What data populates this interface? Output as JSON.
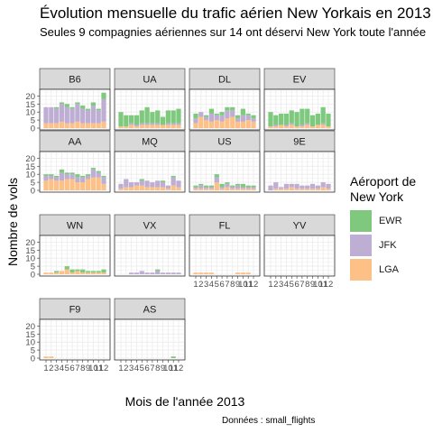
{
  "chart_data": {
    "type": "bar",
    "title": "Évolution mensuelle du trafic aérien New Yorkais en 2013",
    "subtitle": "Seules 9 compagnies aériennes sur 14 ont déservi New York toute l'année",
    "xlabel": "Mois de l'année 2013",
    "ylabel": "Nombre de vols",
    "caption": "Données : small_flights",
    "ylim": [
      0,
      23
    ],
    "y_ticks": [
      0,
      5,
      10,
      15,
      20
    ],
    "x_tick_labels": [
      "1",
      "2",
      "3",
      "4",
      "5",
      "6",
      "7",
      "8",
      "9",
      "10",
      "11",
      "12"
    ],
    "months": [
      1,
      2,
      3,
      4,
      5,
      6,
      7,
      8,
      9,
      10,
      11,
      12
    ],
    "stacked": true,
    "legend": {
      "title": "Aéroport de New York",
      "position": "right",
      "items": [
        {
          "name": "EWR",
          "color": "#7fc97f"
        },
        {
          "name": "JFK",
          "color": "#beaed4"
        },
        {
          "name": "LGA",
          "color": "#fdc086"
        }
      ]
    },
    "facets": [
      {
        "carrier": "B6",
        "EWR": [
          0,
          0,
          1,
          1,
          2,
          1,
          1,
          2,
          1,
          2,
          1,
          4
        ],
        "JFK": [
          10,
          10,
          9,
          11,
          10,
          9,
          11,
          9,
          8,
          11,
          8,
          14
        ],
        "LGA": [
          3,
          3,
          3,
          4,
          3,
          3,
          4,
          3,
          3,
          3,
          3,
          4
        ]
      },
      {
        "carrier": "UA",
        "EWR": [
          9,
          7,
          5,
          6,
          8,
          10,
          7,
          8,
          5,
          8,
          8,
          9
        ],
        "JFK": [
          0,
          0,
          1,
          1,
          1,
          1,
          1,
          1,
          0,
          1,
          1,
          1
        ],
        "LGA": [
          1,
          1,
          2,
          1,
          2,
          2,
          2,
          2,
          2,
          2,
          2,
          2
        ]
      },
      {
        "carrier": "DL",
        "EWR": [
          3,
          0,
          1,
          3,
          1,
          2,
          2,
          2,
          2,
          4,
          1,
          2
        ],
        "JFK": [
          3,
          3,
          2,
          5,
          3,
          4,
          5,
          4,
          2,
          4,
          3,
          2
        ],
        "LGA": [
          3,
          7,
          5,
          4,
          5,
          4,
          6,
          7,
          4,
          4,
          5,
          4
        ]
      },
      {
        "carrier": "EV",
        "EWR": [
          9,
          6,
          7,
          7,
          8,
          9,
          10,
          9,
          7,
          7,
          10,
          8
        ],
        "JFK": [
          0,
          1,
          0,
          1,
          1,
          0,
          1,
          1,
          0,
          0,
          1,
          0
        ],
        "LGA": [
          1,
          1,
          2,
          1,
          2,
          1,
          1,
          2,
          1,
          2,
          2,
          1
        ]
      },
      {
        "carrier": "AA",
        "EWR": [
          1,
          1,
          1,
          2,
          1,
          1,
          2,
          1,
          1,
          1,
          1,
          1
        ],
        "JFK": [
          3,
          2,
          2,
          5,
          3,
          3,
          3,
          3,
          2,
          5,
          3,
          4
        ],
        "LGA": [
          6,
          7,
          6,
          6,
          7,
          7,
          5,
          5,
          7,
          8,
          8,
          4
        ]
      },
      {
        "carrier": "MQ",
        "EWR": [
          0,
          0,
          0,
          0,
          1,
          0,
          0,
          0,
          1,
          0,
          1,
          0
        ],
        "JFK": [
          3,
          5,
          3,
          2,
          3,
          4,
          3,
          4,
          3,
          2,
          5,
          4
        ],
        "LGA": [
          1,
          2,
          2,
          3,
          3,
          2,
          2,
          2,
          2,
          1,
          3,
          2
        ]
      },
      {
        "carrier": "US",
        "EWR": [
          1,
          1,
          1,
          1,
          2,
          2,
          1,
          1,
          1,
          2,
          1,
          1
        ],
        "JFK": [
          1,
          2,
          1,
          1,
          3,
          1,
          2,
          1,
          2,
          1,
          1,
          1
        ],
        "LGA": [
          1,
          1,
          1,
          1,
          5,
          1,
          2,
          1,
          1,
          1,
          1,
          1
        ]
      },
      {
        "carrier": "9E",
        "EWR": [
          0,
          0,
          0,
          0,
          0,
          0,
          0,
          0,
          0,
          0,
          0,
          0
        ],
        "JFK": [
          3,
          4,
          1,
          3,
          2,
          3,
          2,
          2,
          3,
          2,
          3,
          3
        ],
        "LGA": [
          0,
          1,
          1,
          1,
          2,
          1,
          1,
          1,
          1,
          1,
          2,
          1
        ]
      },
      {
        "carrier": "WN",
        "EWR": [
          0,
          0,
          1,
          0,
          2,
          2,
          1,
          2,
          1,
          1,
          1,
          2
        ],
        "JFK": [
          0,
          0,
          0,
          0,
          0,
          0,
          0,
          0,
          0,
          0,
          0,
          0
        ],
        "LGA": [
          1,
          1,
          1,
          2,
          3,
          1,
          2,
          1,
          1,
          1,
          1,
          1
        ]
      },
      {
        "carrier": "VX",
        "EWR": [
          0,
          0,
          0,
          0,
          0,
          0,
          0,
          1,
          0,
          0,
          0,
          0
        ],
        "JFK": [
          0,
          0,
          1,
          1,
          2,
          1,
          1,
          2,
          1,
          1,
          1,
          1
        ],
        "LGA": [
          0,
          0,
          0,
          0,
          0,
          0,
          0,
          0,
          0,
          0,
          0,
          0
        ]
      },
      {
        "carrier": "FL",
        "EWR": [
          0,
          0,
          0,
          0,
          0,
          0,
          0,
          0,
          0,
          0,
          0,
          0
        ],
        "JFK": [
          0,
          0,
          0,
          0,
          0,
          0,
          0,
          0,
          0,
          0,
          0,
          0
        ],
        "LGA": [
          1,
          1,
          1,
          1,
          0,
          0,
          0,
          0,
          1,
          1,
          1,
          0
        ]
      },
      {
        "carrier": "YV",
        "EWR": [
          0,
          0,
          0,
          0,
          0,
          0,
          0,
          0,
          0,
          0,
          0,
          0
        ],
        "JFK": [
          0,
          0,
          0,
          0,
          0,
          0,
          0,
          0,
          0,
          0,
          0,
          0
        ],
        "LGA": [
          0,
          0,
          0,
          0,
          0,
          0,
          0,
          0,
          0,
          0,
          0,
          0
        ]
      },
      {
        "carrier": "F9",
        "EWR": [
          0,
          0,
          0,
          0,
          0,
          0,
          0,
          0,
          0,
          0,
          0,
          0
        ],
        "JFK": [
          0,
          0,
          0,
          0,
          0,
          0,
          0,
          0,
          0,
          0,
          0,
          0
        ],
        "LGA": [
          1,
          1,
          0,
          0,
          0,
          0,
          0,
          0,
          0,
          0,
          0,
          0
        ]
      },
      {
        "carrier": "AS",
        "EWR": [
          0,
          0,
          0,
          0,
          0,
          0,
          0,
          0,
          0,
          0,
          1,
          0
        ],
        "JFK": [
          0,
          0,
          0,
          0,
          0,
          0,
          0,
          0,
          0,
          0,
          0,
          0
        ],
        "LGA": [
          0,
          0,
          0,
          0,
          0,
          0,
          0,
          0,
          0,
          0,
          0,
          0
        ]
      }
    ]
  }
}
